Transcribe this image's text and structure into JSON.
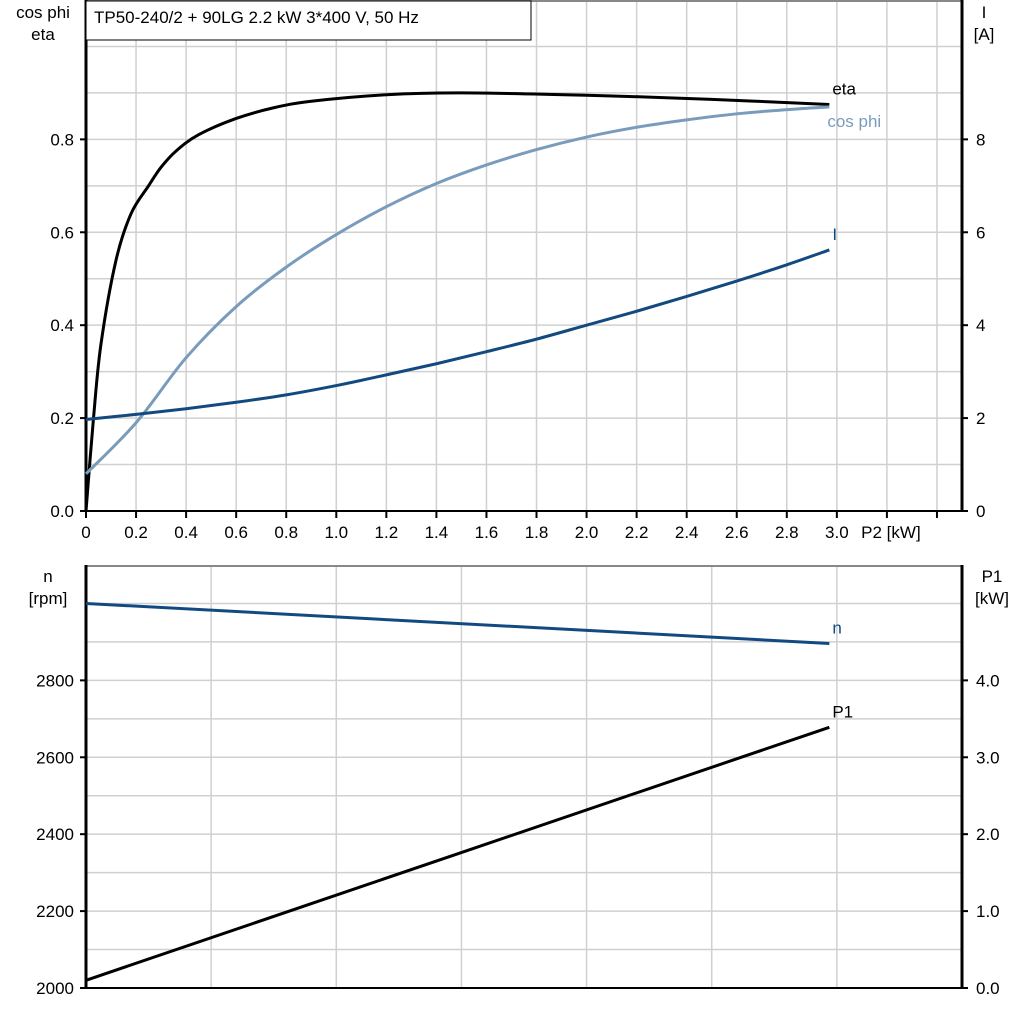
{
  "title": "TP50-240/2 + 90LG   2.2 kW   3*400 V, 50 Hz",
  "chart_data": [
    {
      "type": "line",
      "xlabel": "P2 [kW]",
      "xlim": [
        0,
        3.5
      ],
      "xticks": [
        "0",
        "0.2",
        "0.4",
        "0.6",
        "0.8",
        "1.0",
        "1.2",
        "1.4",
        "1.6",
        "1.8",
        "2.0",
        "2.2",
        "2.4",
        "2.6",
        "2.8",
        "3.0"
      ],
      "ylabel_left": [
        "cos phi",
        "eta"
      ],
      "ylim_left": [
        0,
        1.1
      ],
      "yticks_left": [
        "0.0",
        "0.2",
        "0.4",
        "0.6",
        "0.8"
      ],
      "ylabel_right": [
        "I",
        "[A]"
      ],
      "ylim_right": [
        0,
        11
      ],
      "yticks_right": [
        "0",
        "2",
        "4",
        "6",
        "8"
      ],
      "grid": true,
      "series": [
        {
          "name": "eta",
          "axis": "left",
          "color": "#000000",
          "x": [
            0,
            0.03,
            0.06,
            0.12,
            0.18,
            0.25,
            0.3,
            0.36,
            0.45,
            0.6,
            0.75,
            0.9,
            1.2,
            1.5,
            2.0,
            2.5,
            2.97
          ],
          "y": [
            0,
            0.2,
            0.36,
            0.54,
            0.64,
            0.7,
            0.74,
            0.775,
            0.81,
            0.845,
            0.868,
            0.882,
            0.896,
            0.9,
            0.895,
            0.886,
            0.875
          ]
        },
        {
          "name": "cos phi",
          "axis": "left",
          "color": "#7a9cbc",
          "x": [
            0,
            0.2,
            0.4,
            0.6,
            0.8,
            1.0,
            1.2,
            1.4,
            1.6,
            1.8,
            2.0,
            2.2,
            2.4,
            2.6,
            2.8,
            2.97
          ],
          "y": [
            0.08,
            0.19,
            0.33,
            0.44,
            0.525,
            0.595,
            0.655,
            0.705,
            0.745,
            0.778,
            0.805,
            0.826,
            0.842,
            0.855,
            0.864,
            0.87
          ]
        },
        {
          "name": "I",
          "axis": "right",
          "color": "#124a80",
          "x": [
            0,
            0.2,
            0.4,
            0.6,
            0.8,
            1.0,
            1.2,
            1.4,
            1.6,
            1.8,
            2.0,
            2.2,
            2.4,
            2.6,
            2.8,
            2.97
          ],
          "y": [
            1.97,
            2.08,
            2.2,
            2.34,
            2.5,
            2.7,
            2.93,
            3.17,
            3.43,
            3.7,
            4.0,
            4.3,
            4.62,
            4.95,
            5.3,
            5.62
          ]
        }
      ]
    },
    {
      "type": "line",
      "xlim": [
        0,
        3.5
      ],
      "ylabel_left": [
        "n",
        "[rpm]"
      ],
      "ylim_left": [
        2000,
        3100
      ],
      "yticks_left": [
        "2000",
        "2200",
        "2400",
        "2600",
        "2800"
      ],
      "ylabel_right": [
        "P1",
        "[kW]"
      ],
      "ylim_right": [
        0,
        5.5
      ],
      "yticks_right": [
        "0.0",
        "1.0",
        "2.0",
        "3.0",
        "4.0"
      ],
      "grid": true,
      "series": [
        {
          "name": "n",
          "axis": "left",
          "color": "#124a80",
          "x": [
            0,
            2.97
          ],
          "y": [
            3000,
            2896
          ]
        },
        {
          "name": "P1",
          "axis": "right",
          "color": "#000000",
          "x": [
            0,
            2.97
          ],
          "y": [
            0.1,
            3.39
          ]
        }
      ]
    }
  ]
}
